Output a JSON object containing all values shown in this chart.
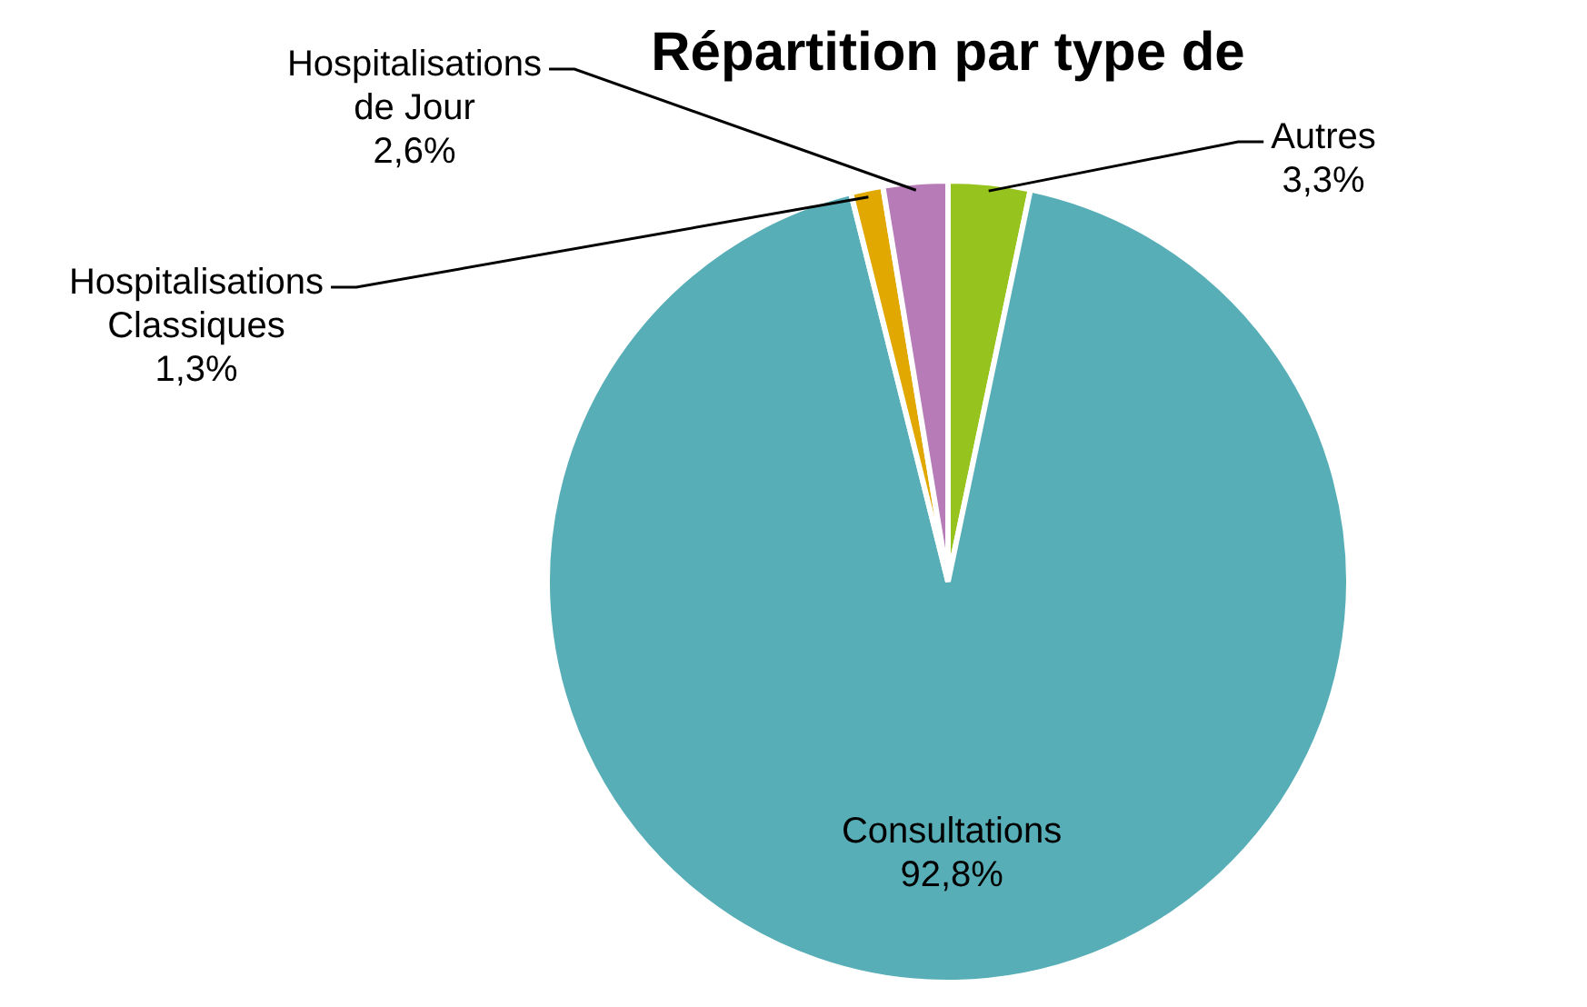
{
  "chart_data": {
    "type": "pie",
    "title": "Répartition par type de",
    "categories": [
      "Autres",
      "Consultations",
      "Hospitalisations Classiques",
      "Hospitalisations de Jour"
    ],
    "values": [
      3.3,
      92.8,
      1.3,
      2.6
    ],
    "value_labels": [
      "3,3%",
      "92,8%",
      "1,3%",
      "2,6%"
    ],
    "colors": [
      "#97c31f",
      "#57aeb7",
      "#e0a800",
      "#b77bb8"
    ],
    "legend": false
  }
}
